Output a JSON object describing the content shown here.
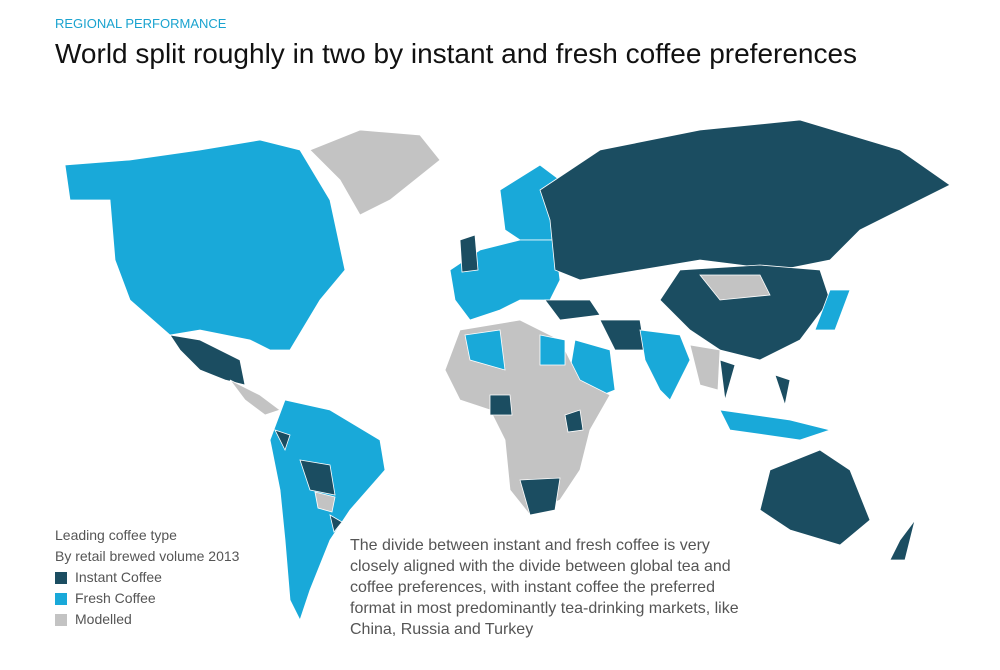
{
  "header": {
    "kicker": "REGIONAL PERFORMANCE",
    "title": "World split roughly in two by instant and fresh coffee preferences"
  },
  "legend": {
    "title": "Leading coffee type",
    "subtitle": "By retail brewed volume 2013",
    "items": [
      {
        "label": "Instant Coffee",
        "color": "#1b4d61"
      },
      {
        "label": "Fresh Coffee",
        "color": "#19a9d9"
      },
      {
        "label": "Modelled",
        "color": "#c3c3c3"
      }
    ]
  },
  "annotation": "The divide between instant and fresh coffee is very closely aligned with the divide between global tea and coffee preferences, with instant coffee the preferred format in most predominantly tea-drinking markets, like China, Russia and Turkey"
}
